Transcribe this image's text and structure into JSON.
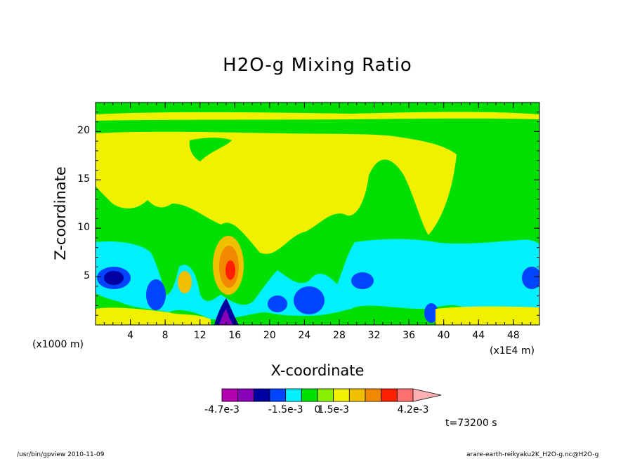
{
  "chart_data": {
    "type": "heatmap",
    "title": "H2O-g Mixing Ratio",
    "xlabel": "X-coordinate",
    "ylabel": "Z-coordinate",
    "x_unit_left": "(x1000 m)",
    "x_unit_right": "(x1E4 m)",
    "xlim": [
      0,
      51
    ],
    "ylim": [
      0,
      23
    ],
    "x_ticks": [
      4,
      8,
      12,
      16,
      20,
      24,
      28,
      32,
      36,
      40,
      44,
      48
    ],
    "y_ticks": [
      5,
      10,
      15,
      20
    ],
    "colorbar": {
      "labels": [
        "-4.7e-3",
        "-1.5e-3",
        "0",
        "1.5e-3",
        "4.2e-3"
      ],
      "colors": [
        "#b000b0",
        "#8800b8",
        "#0000a0",
        "#0044ff",
        "#00f0ff",
        "#00e000",
        "#88f000",
        "#f0f000",
        "#f0c000",
        "#f08800",
        "#ff2000",
        "#ff7070",
        "#ffb0b0"
      ]
    },
    "time_label": "t=73200 s",
    "footer_left": "/usr/bin/gpview  2010-11-09",
    "footer_right": "arare-earth-reikyaku2K_H2O-g.nc@H2O-g"
  }
}
